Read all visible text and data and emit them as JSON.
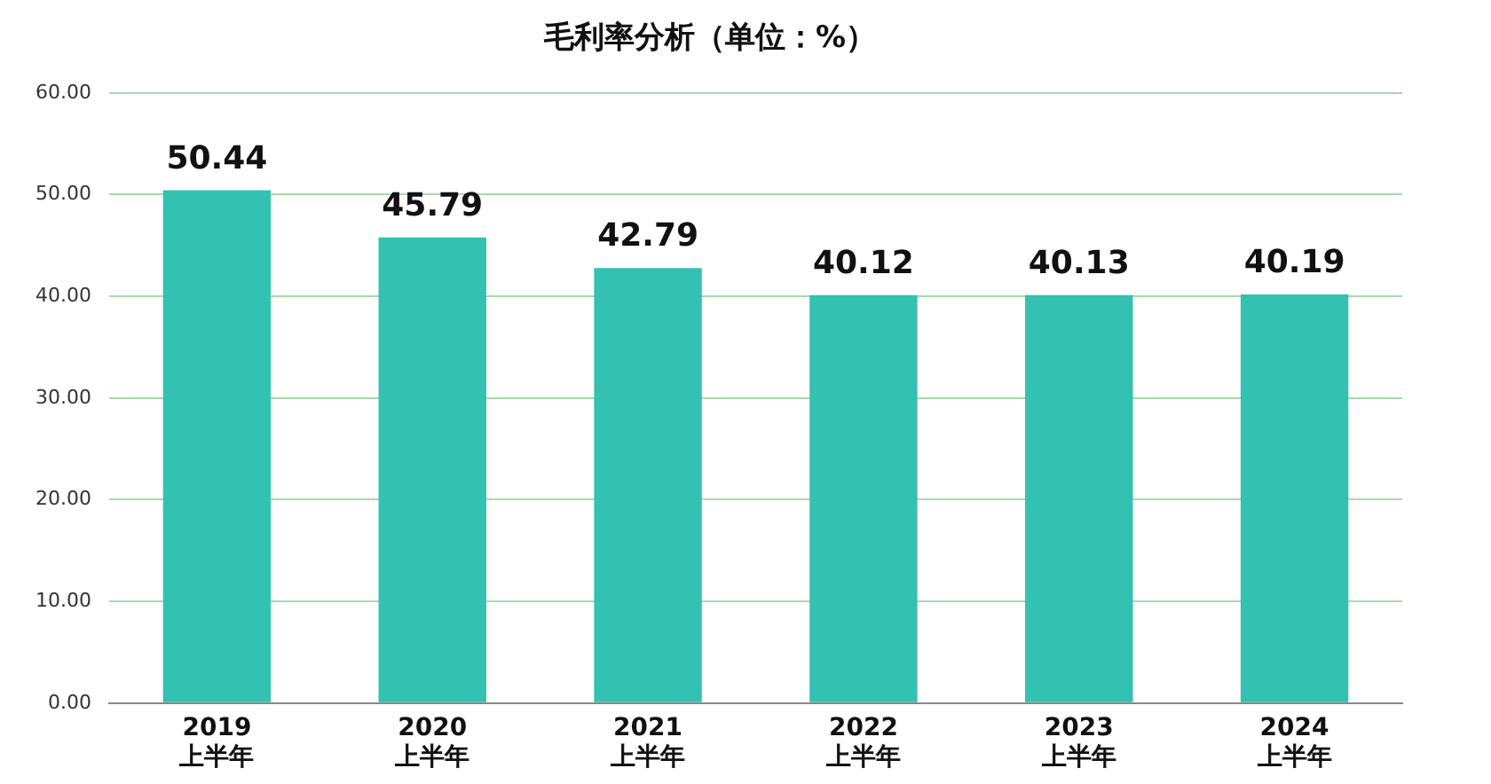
{
  "chart_data": {
    "type": "bar",
    "title": "毛利率分析（单位：%）",
    "categories": [
      "2019\n上半年",
      "2020\n上半年",
      "2021\n上半年",
      "2022\n上半年",
      "2023\n上半年",
      "2024\n上半年"
    ],
    "values": [
      50.44,
      45.79,
      42.79,
      40.12,
      40.13,
      40.19
    ],
    "color": "#33c1b1",
    "ylim": [
      0,
      60
    ],
    "yticks": [
      {
        "value": 0,
        "label": "0.00"
      },
      {
        "value": 10,
        "label": "10.00"
      },
      {
        "value": 20,
        "label": "20.00"
      },
      {
        "value": 30,
        "label": "30.00"
      },
      {
        "value": 40,
        "label": "40.00"
      },
      {
        "value": 50,
        "label": "50.00"
      },
      {
        "value": 60,
        "label": "60.00"
      }
    ],
    "grid": "y",
    "data_labels": true
  }
}
